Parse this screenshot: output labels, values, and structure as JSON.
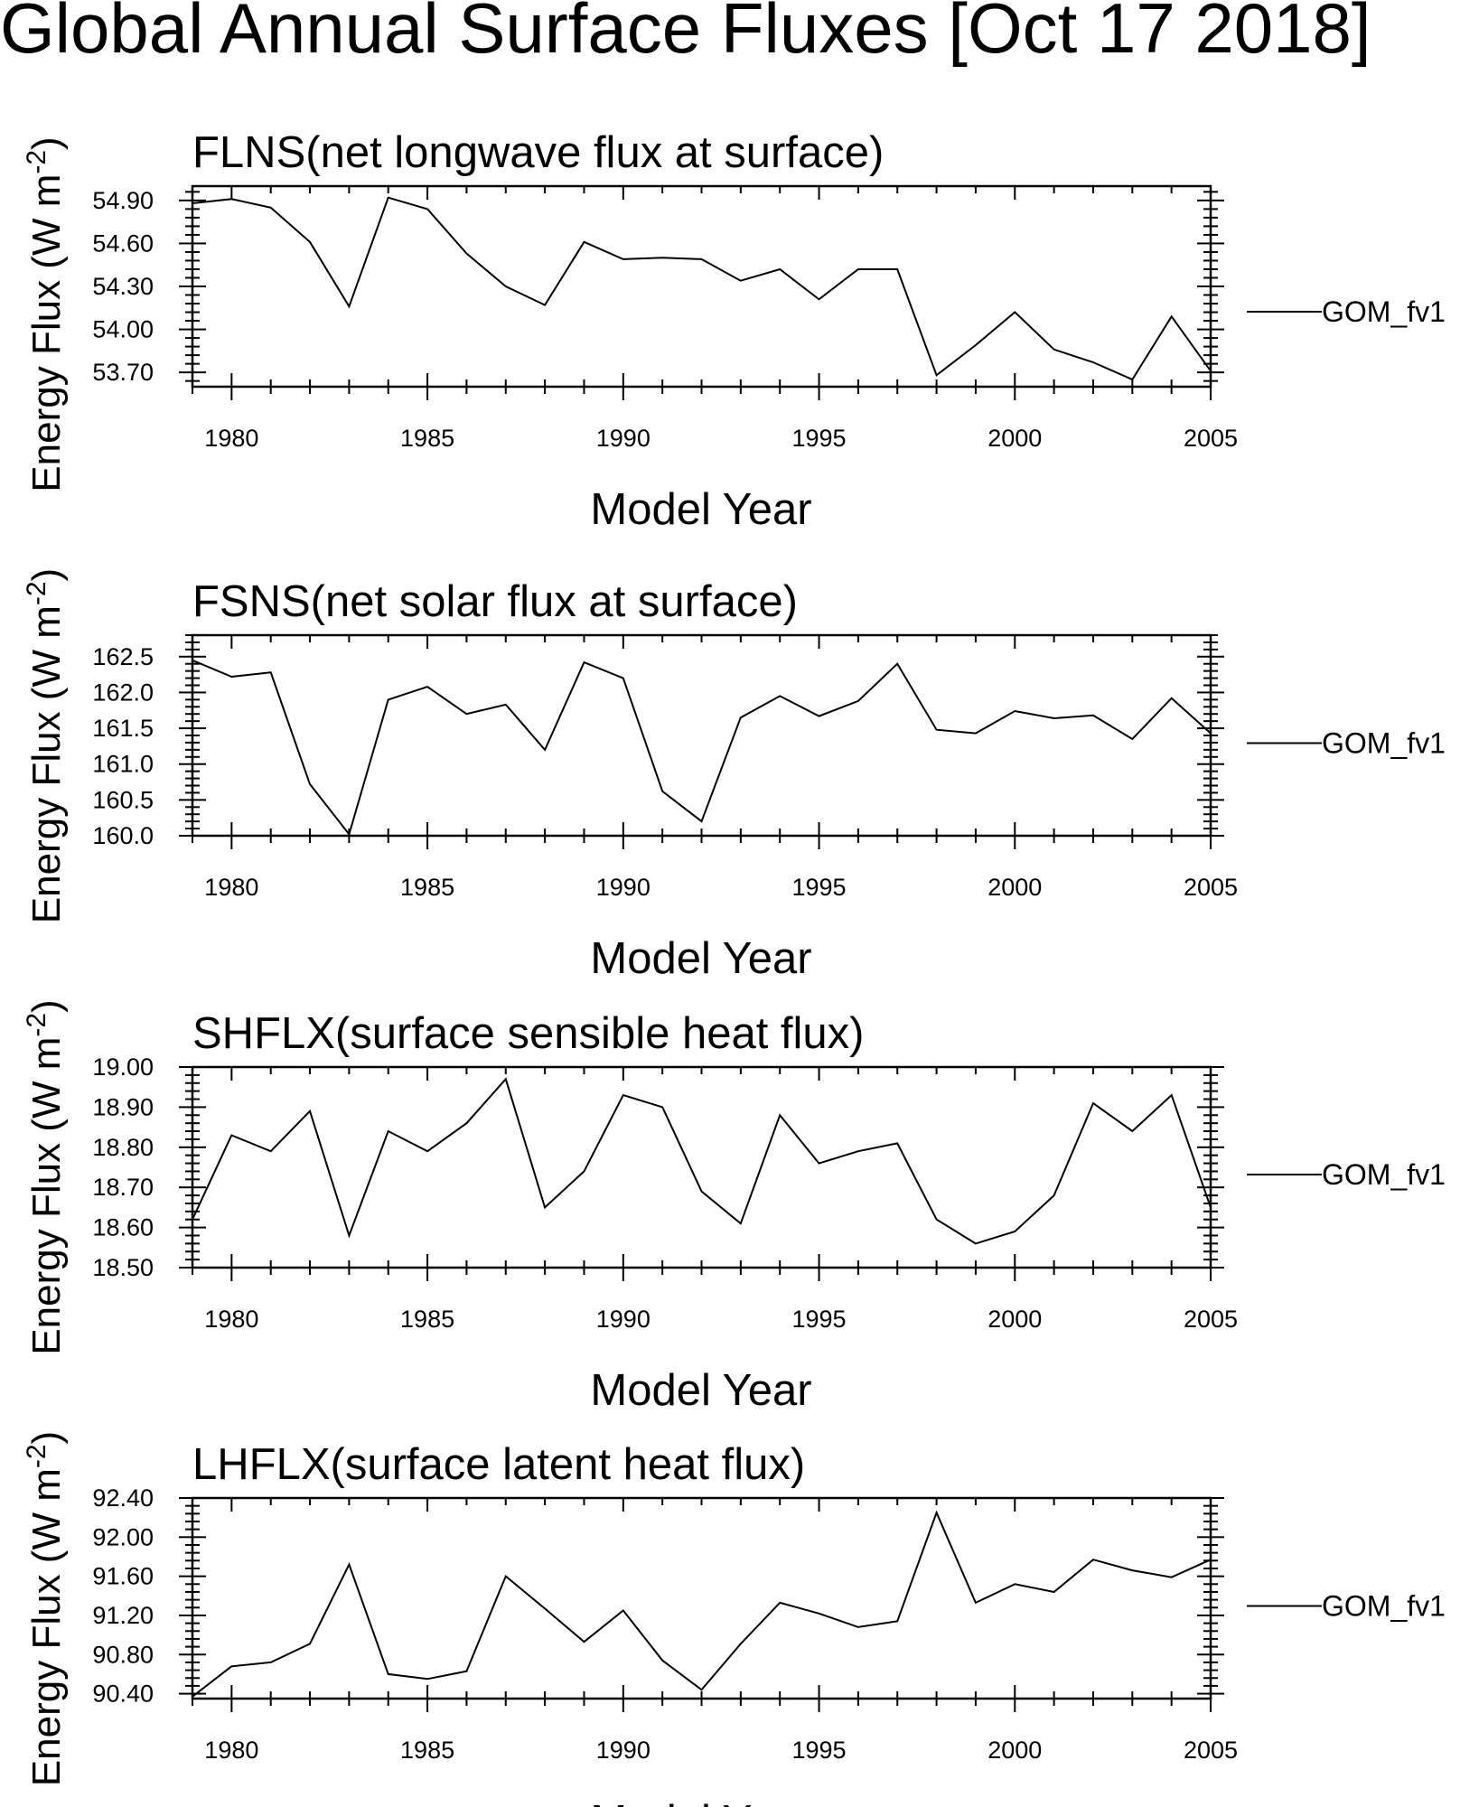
{
  "title": "Global Annual Surface Fluxes [Oct 17 2018]",
  "chart_data": [
    {
      "type": "line",
      "title": "FLNS(net longwave flux at surface)",
      "xlabel": "Model Year",
      "ylabel_main": "Energy Flux (W m",
      "ylabel_sup": "-2",
      "ylabel_end": ")",
      "xlim": [
        1979,
        2005
      ],
      "ylim": [
        53.6,
        55.0
      ],
      "xticks": [
        1980,
        1985,
        1990,
        1995,
        2000,
        2005
      ],
      "yticks": [
        53.7,
        54.0,
        54.3,
        54.6,
        54.9
      ],
      "ytick_labels": [
        "53.70",
        "54.00",
        "54.30",
        "54.60",
        "54.90"
      ],
      "legend": "top-right",
      "series": [
        {
          "name": "GOM_fv1",
          "color": "#000000",
          "x": [
            1979,
            1980,
            1981,
            1982,
            1983,
            1984,
            1985,
            1986,
            1987,
            1988,
            1989,
            1990,
            1991,
            1992,
            1993,
            1994,
            1995,
            1996,
            1997,
            1998,
            1999,
            2000,
            2001,
            2002,
            2003,
            2004,
            2005
          ],
          "values": [
            54.88,
            54.91,
            54.85,
            54.61,
            54.16,
            54.92,
            54.84,
            54.53,
            54.3,
            54.17,
            54.61,
            54.49,
            54.5,
            54.49,
            54.34,
            54.42,
            54.21,
            54.42,
            54.42,
            53.68,
            53.89,
            54.12,
            53.86,
            53.77,
            53.65,
            54.09,
            53.71
          ]
        }
      ]
    },
    {
      "type": "line",
      "title": "FSNS(net solar flux at surface)",
      "xlabel": "Model Year",
      "ylabel_main": "Energy Flux (W m",
      "ylabel_sup": "-2",
      "ylabel_end": ")",
      "xlim": [
        1979,
        2005
      ],
      "ylim": [
        160.0,
        162.8
      ],
      "xticks": [
        1980,
        1985,
        1990,
        1995,
        2000,
        2005
      ],
      "yticks": [
        160.0,
        160.5,
        161.0,
        161.5,
        162.0,
        162.5
      ],
      "ytick_labels": [
        "160.0",
        "160.5",
        "161.0",
        "161.5",
        "162.0",
        "162.5"
      ],
      "legend": "top-right",
      "series": [
        {
          "name": "GOM_fv1",
          "color": "#000000",
          "x": [
            1979,
            1980,
            1981,
            1982,
            1983,
            1984,
            1985,
            1986,
            1987,
            1988,
            1989,
            1990,
            1991,
            1992,
            1993,
            1994,
            1995,
            1996,
            1997,
            1998,
            1999,
            2000,
            2001,
            2002,
            2003,
            2004,
            2005
          ],
          "values": [
            162.45,
            162.22,
            162.28,
            160.72,
            160.02,
            161.9,
            162.08,
            161.7,
            161.83,
            161.2,
            162.42,
            162.2,
            160.62,
            160.2,
            161.65,
            161.95,
            161.67,
            161.88,
            162.4,
            161.48,
            161.43,
            161.74,
            161.64,
            161.68,
            161.35,
            161.92,
            161.43
          ]
        }
      ]
    },
    {
      "type": "line",
      "title": "SHFLX(surface sensible heat flux)",
      "xlabel": "Model Year",
      "ylabel_main": "Energy Flux (W m",
      "ylabel_sup": "-2",
      "ylabel_end": ")",
      "xlim": [
        1979,
        2005
      ],
      "ylim": [
        18.5,
        19.0
      ],
      "xticks": [
        1980,
        1985,
        1990,
        1995,
        2000,
        2005
      ],
      "yticks": [
        18.5,
        18.6,
        18.7,
        18.8,
        18.9,
        19.0
      ],
      "ytick_labels": [
        "18.50",
        "18.60",
        "18.70",
        "18.80",
        "18.90",
        "19.00"
      ],
      "legend": "top-right",
      "series": [
        {
          "name": "GOM_fv1",
          "color": "#000000",
          "x": [
            1979,
            1980,
            1981,
            1982,
            1983,
            1984,
            1985,
            1986,
            1987,
            1988,
            1989,
            1990,
            1991,
            1992,
            1993,
            1994,
            1995,
            1996,
            1997,
            1998,
            1999,
            2000,
            2001,
            2002,
            2003,
            2004,
            2005
          ],
          "values": [
            18.62,
            18.83,
            18.79,
            18.89,
            18.58,
            18.84,
            18.79,
            18.86,
            18.97,
            18.65,
            18.74,
            18.93,
            18.9,
            18.69,
            18.61,
            18.88,
            18.76,
            18.79,
            18.81,
            18.62,
            18.56,
            18.59,
            18.68,
            18.91,
            18.84,
            18.93,
            18.65
          ]
        }
      ]
    },
    {
      "type": "line",
      "title": "LHFLX(surface latent heat flux)",
      "xlabel": "Model Year",
      "ylabel_main": "Energy Flux (W m",
      "ylabel_sup": "-2",
      "ylabel_end": ")",
      "xlim": [
        1979,
        2005
      ],
      "ylim": [
        90.35,
        92.4
      ],
      "xticks": [
        1980,
        1985,
        1990,
        1995,
        2000,
        2005
      ],
      "yticks": [
        90.4,
        90.8,
        91.2,
        91.6,
        92.0,
        92.4
      ],
      "ytick_labels": [
        "90.40",
        "90.80",
        "91.20",
        "91.60",
        "92.00",
        "92.40"
      ],
      "legend": "top-right",
      "series": [
        {
          "name": "GOM_fv1",
          "color": "#000000",
          "x": [
            1979,
            1980,
            1981,
            1982,
            1983,
            1984,
            1985,
            1986,
            1987,
            1988,
            1989,
            1990,
            1991,
            1992,
            1993,
            1994,
            1995,
            1996,
            1997,
            1998,
            1999,
            2000,
            2001,
            2002,
            2003,
            2004,
            2005
          ],
          "values": [
            90.37,
            90.68,
            90.72,
            90.91,
            91.72,
            90.6,
            90.55,
            90.63,
            91.6,
            91.27,
            90.93,
            91.25,
            90.74,
            90.44,
            90.91,
            91.33,
            91.22,
            91.08,
            91.14,
            92.25,
            91.33,
            91.52,
            91.44,
            91.77,
            91.66,
            91.59,
            91.77
          ]
        }
      ]
    }
  ]
}
